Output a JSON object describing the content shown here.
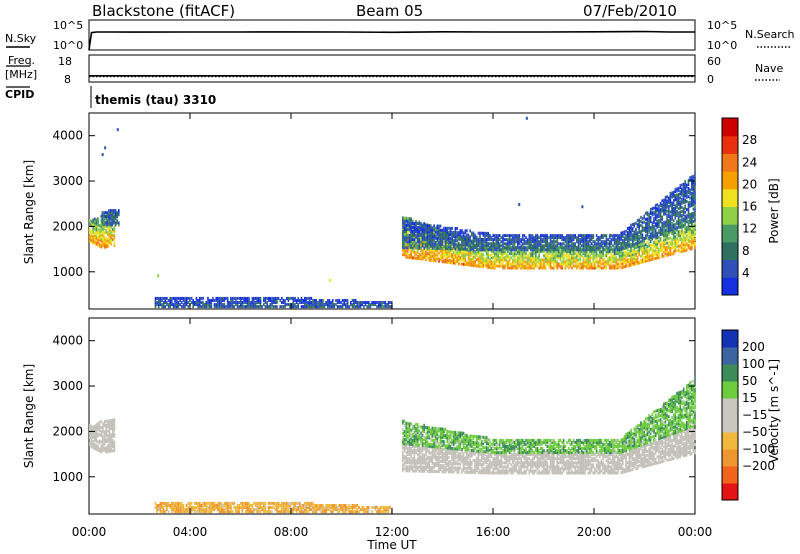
{
  "header": {
    "station": "Blackstone (fitACF)",
    "beam": "Beam 05",
    "date": "07/Feb/2010"
  },
  "strip": {
    "n_sky_label": "N.Sky",
    "n_sky_ticks": [
      "10^5",
      "10^0"
    ],
    "n_search_label": "N.Search",
    "n_search_ticks": [
      "10^5",
      "10^0"
    ],
    "freq_label": "Freq.",
    "freq_unit": "[MHz]",
    "freq_ticks": [
      "18",
      "8"
    ],
    "nave_label": "Nave",
    "nave_ticks": [
      "60",
      "0"
    ],
    "cpid_label": "CPID",
    "cpid_text": "themis (tau) 3310"
  },
  "x_axis": {
    "label": "Time UT",
    "ticks": [
      "00:00",
      "04:00",
      "08:00",
      "12:00",
      "16:00",
      "20:00",
      "00:00"
    ],
    "range_hours": [
      0,
      24
    ]
  },
  "colors": {
    "power": [
      "#1530e0",
      "#3050b8",
      "#2f7060",
      "#4a9a64",
      "#8fd048",
      "#f0e020",
      "#f5a000",
      "#f07818",
      "#e83010",
      "#cc0000"
    ],
    "velocity": [
      "#e41414",
      "#f0641c",
      "#f09630",
      "#f0b83c",
      "#c8c8c0",
      "#c8c8c0",
      "#6ccc3c",
      "#3c8c5a",
      "#3c64a0",
      "#1432b4"
    ],
    "ground_scatter": "#c3c0b8"
  },
  "chart_data": [
    {
      "type": "line",
      "title": "N.Sky / N.Search",
      "x_range": [
        0,
        24
      ],
      "y_scale": "log",
      "ylim": [
        1,
        100000
      ],
      "series": [
        {
          "name": "N.Sky",
          "style": "solid",
          "x": [
            0.0,
            0.1,
            0.3,
            1,
            2,
            4,
            6,
            8,
            10,
            12,
            14,
            16,
            18,
            20,
            22,
            23,
            24
          ],
          "y": [
            1,
            800,
            1000,
            1000,
            950,
            1000,
            1000,
            1050,
            1000,
            900,
            1100,
            1000,
            1000,
            1100,
            1200,
            1000,
            1000
          ]
        },
        {
          "name": "N.Search",
          "style": "dotted"
        }
      ]
    },
    {
      "type": "line",
      "title": "Freq. [MHz] / Nave",
      "x_range": [
        0,
        24
      ],
      "left_ylim": [
        8,
        18
      ],
      "right_ylim": [
        0,
        60
      ],
      "series": [
        {
          "name": "Freq.",
          "style": "solid",
          "x": [
            0,
            24
          ],
          "y": [
            10.3,
            10.3
          ]
        },
        {
          "name": "Nave",
          "style": "dotted",
          "x": [
            0,
            24
          ],
          "y": [
            12,
            12
          ]
        }
      ]
    },
    {
      "type": "heatmap",
      "title": "Power",
      "x_range_hours": [
        0,
        24
      ],
      "ylabel": "Slant Range [km]",
      "ylim": [
        180,
        4500
      ],
      "y_ticks": [
        1000,
        2000,
        3000,
        4000
      ],
      "colorbar": {
        "label": "Power [dB]",
        "ticks": [
          4,
          8,
          12,
          16,
          20,
          24,
          28
        ],
        "range": [
          0,
          32
        ]
      },
      "regions": [
        {
          "t": [
            0.0,
            1.0
          ],
          "r_low": [
            1650,
            1500,
            1550
          ],
          "r_high": [
            2100,
            2200,
            2250
          ],
          "value": 22
        },
        {
          "t": [
            0.5,
            1.2
          ],
          "r_low": [
            2000,
            2000
          ],
          "r_high": [
            2300,
            2350
          ],
          "value": 8
        },
        {
          "t": [
            2.6,
            12.0
          ],
          "r_low": [
            200,
            200,
            200
          ],
          "r_high": [
            380,
            420,
            300
          ],
          "value": 6
        },
        {
          "t": [
            12.4,
            16.0,
            21.0,
            24.0
          ],
          "r_low": [
            1300,
            1050,
            1050,
            1500
          ],
          "r_high": [
            2200,
            1500,
            1500,
            2100
          ],
          "value": 22
        },
        {
          "t": [
            12.4,
            16.0,
            21.0,
            24.0
          ],
          "r_low": [
            1500,
            1450,
            1450,
            2100
          ],
          "r_high": [
            2100,
            1800,
            1800,
            3150
          ],
          "value": 8
        }
      ],
      "scatter_points": [
        {
          "t": 0.5,
          "r": 3550,
          "value": 6
        },
        {
          "t": 0.6,
          "r": 3700,
          "value": 6
        },
        {
          "t": 1.1,
          "r": 4100,
          "value": 6
        },
        {
          "t": 2.7,
          "r": 880,
          "value": 14
        },
        {
          "t": 9.5,
          "r": 780,
          "value": 18
        },
        {
          "t": 17.3,
          "r": 4350,
          "value": 6
        },
        {
          "t": 17.0,
          "r": 2450,
          "value": 6
        },
        {
          "t": 19.5,
          "r": 2400,
          "value": 6
        }
      ]
    },
    {
      "type": "heatmap",
      "title": "Velocity",
      "x_range_hours": [
        0,
        24
      ],
      "ylabel": "Slant Range [km]",
      "ylim": [
        180,
        4500
      ],
      "y_ticks": [
        1000,
        2000,
        3000,
        4000
      ],
      "colorbar": {
        "label": "Velocity [m s^-1]",
        "ticks": [
          "200",
          "100",
          "50",
          "15",
          "-15",
          "-50",
          "-100",
          "-200"
        ]
      },
      "regions": [
        {
          "t": [
            0.0,
            1.0
          ],
          "r_low": [
            1650,
            1500,
            1550
          ],
          "r_high": [
            2100,
            2200,
            2250
          ],
          "class": "ground"
        },
        {
          "t": [
            2.6,
            12.0
          ],
          "r_low": [
            200,
            200,
            200
          ],
          "r_high": [
            380,
            420,
            300
          ],
          "value": -40
        },
        {
          "t": [
            12.4,
            16.0,
            21.0,
            24.0
          ],
          "r_low": [
            1100,
            1050,
            1050,
            1500
          ],
          "r_high": [
            1700,
            1500,
            1500,
            2100
          ],
          "class": "ground"
        },
        {
          "t": [
            12.4,
            16.0,
            21.0,
            24.0
          ],
          "r_low": [
            1700,
            1500,
            1500,
            2100
          ],
          "r_high": [
            2200,
            1800,
            1800,
            3150
          ],
          "value": 40
        }
      ]
    }
  ]
}
